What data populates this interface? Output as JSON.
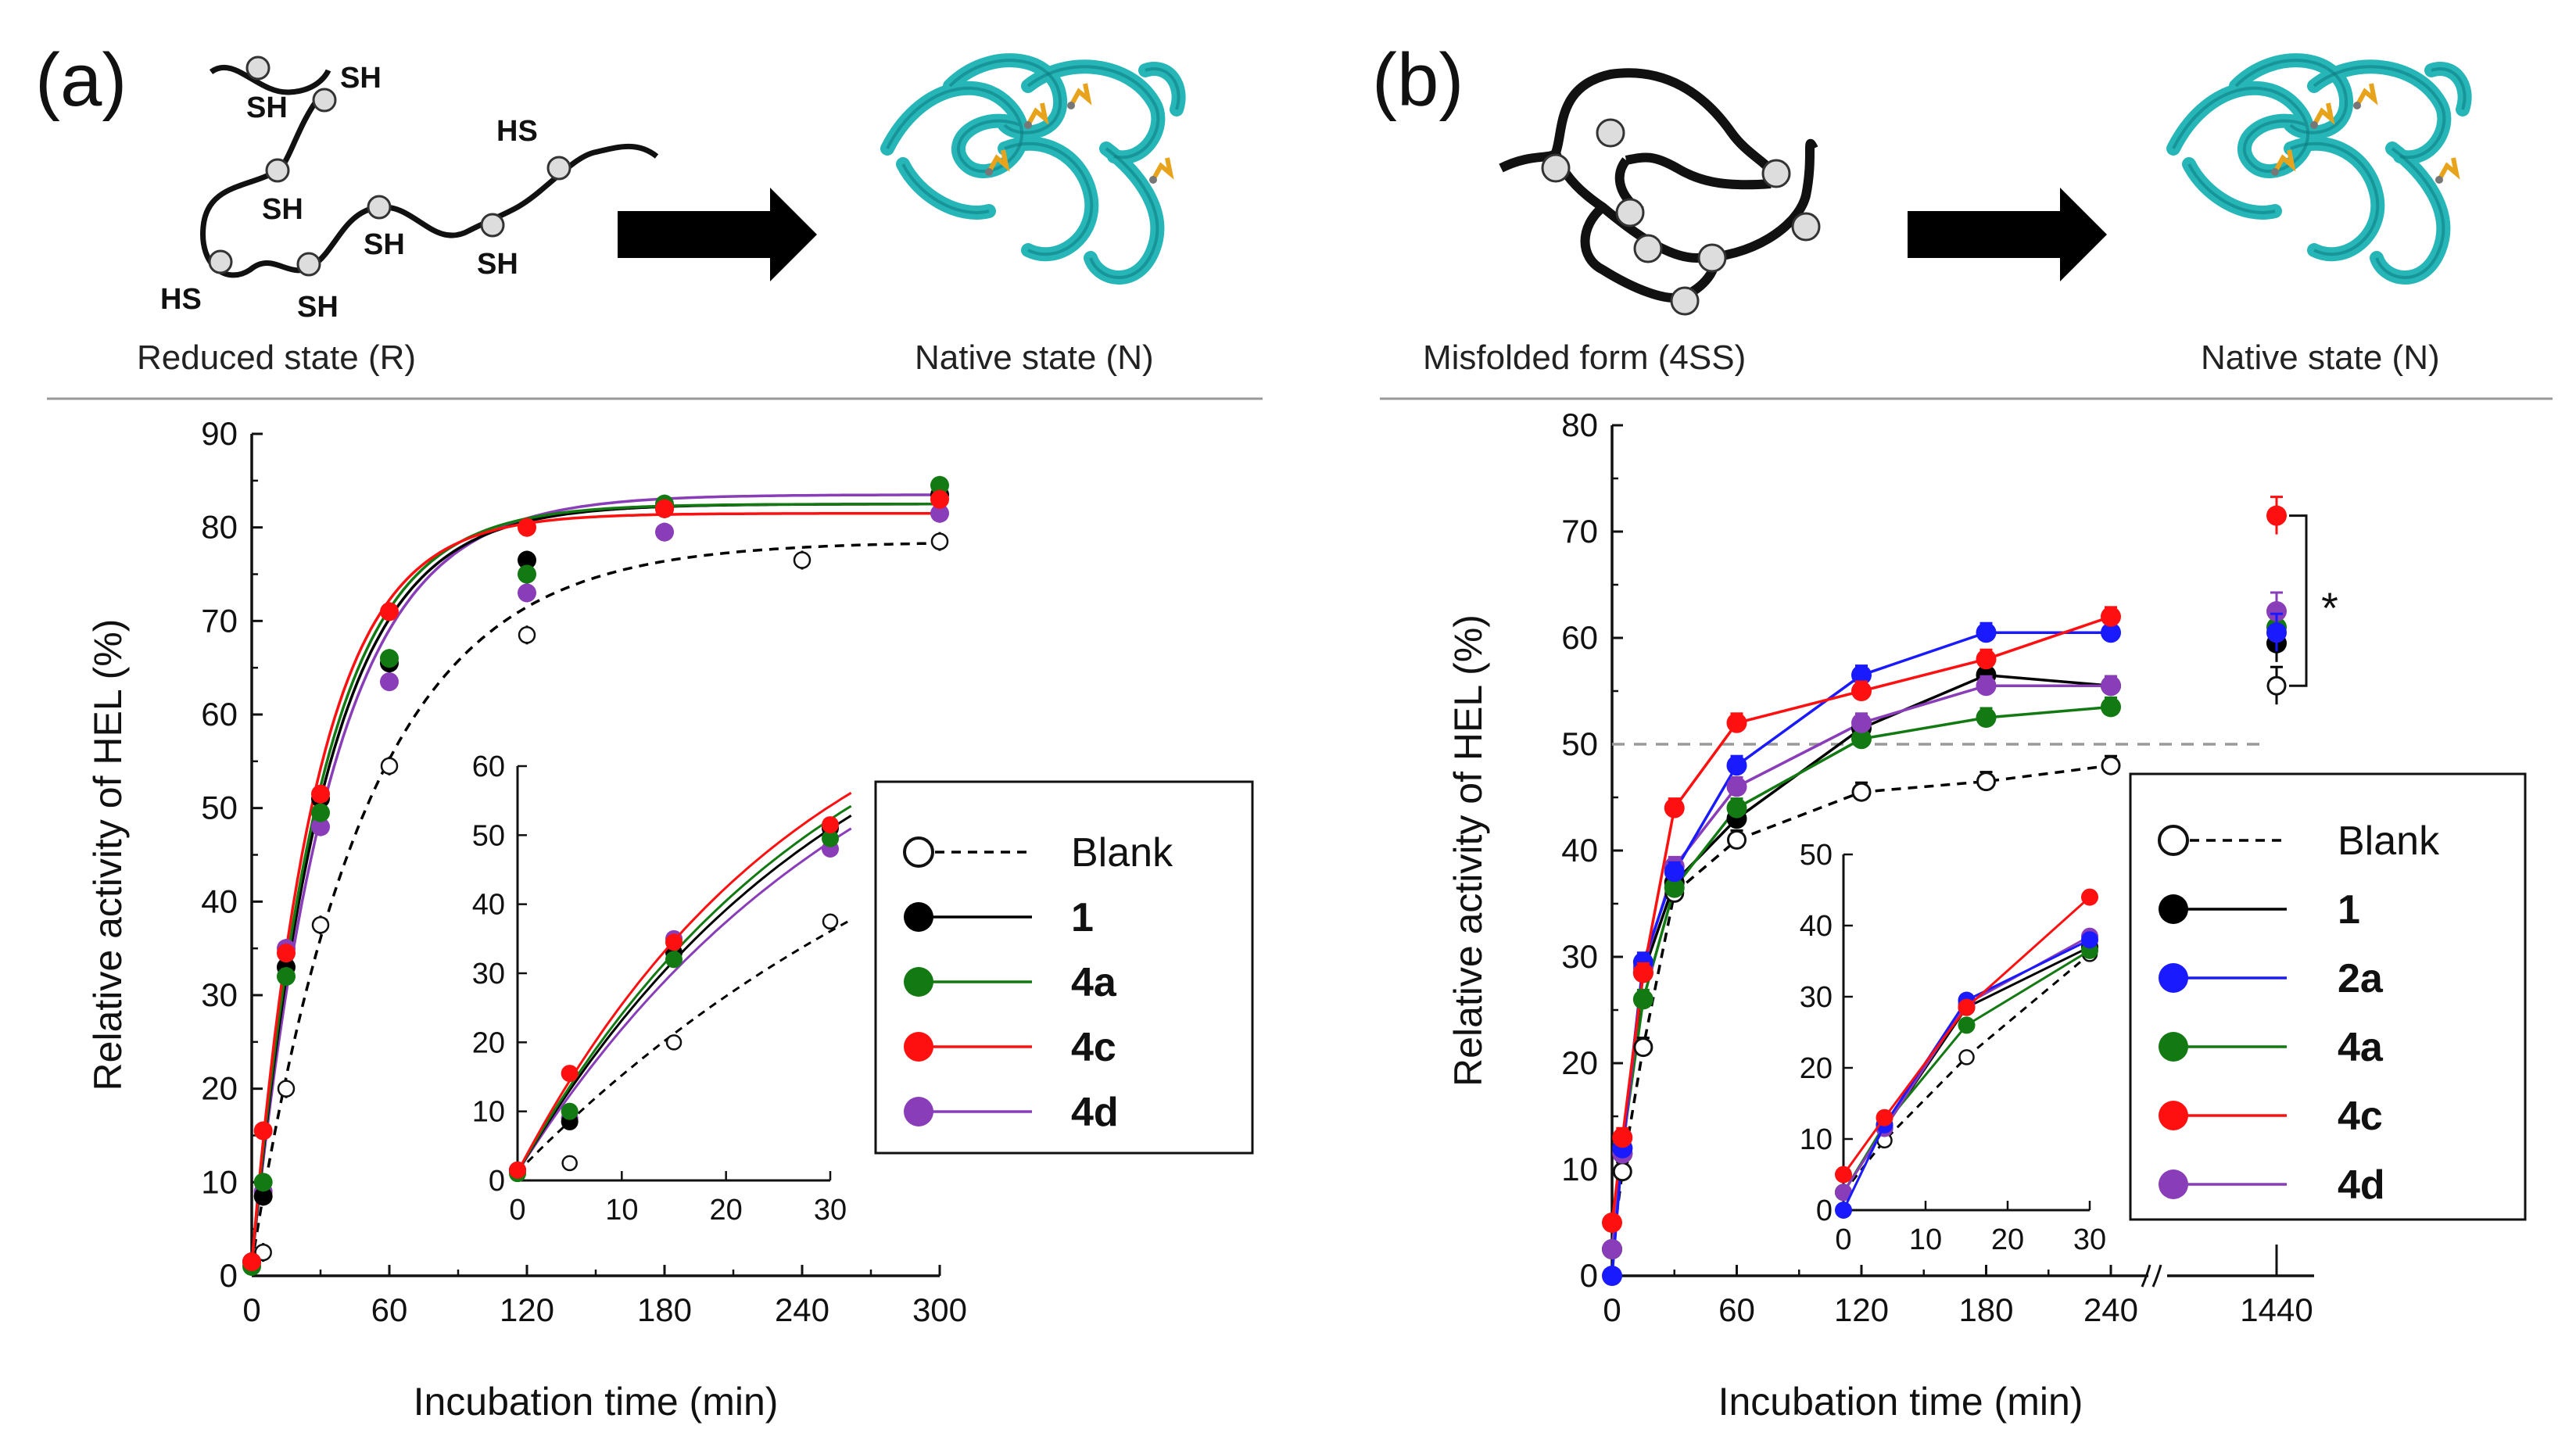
{
  "panels": [
    {
      "id": "a",
      "letter": "(a)",
      "left_caption": "Reduced state (R)",
      "right_caption": "Native state (N)",
      "thiol_labels": [
        "SH",
        "SH",
        "SH",
        "HS",
        "SH",
        "SH",
        "SH",
        "HS"
      ]
    },
    {
      "id": "b",
      "letter": "(b)",
      "left_caption": "Misfolded form (4SS)",
      "right_caption": "Native state (N)"
    }
  ],
  "colors": {
    "Blank": "#000000",
    "1": "#000000",
    "2a": "#1a1aff",
    "4a": "#137a13",
    "4c": "#ff1010",
    "4d": "#8a3db8",
    "protein": "#27b6b8",
    "disulfide": "#e8a31c"
  },
  "chart_data": [
    {
      "type": "line",
      "panel": "a",
      "xlabel": "Incubation time (min)",
      "ylabel": "Relative activity of HEL (%)",
      "xlim": [
        0,
        300
      ],
      "ylim": [
        0,
        90
      ],
      "xticks": [
        0,
        60,
        120,
        180,
        240,
        300
      ],
      "yticks": [
        0,
        10,
        20,
        30,
        40,
        50,
        60,
        70,
        80,
        90
      ],
      "legend": [
        "Blank",
        "1",
        "4a",
        "4c",
        "4d"
      ],
      "series": [
        {
          "name": "Blank",
          "style": "open-dashed",
          "x": [
            0,
            5,
            15,
            30,
            60,
            120,
            240,
            300
          ],
          "y": [
            1.5,
            2.5,
            20,
            37.5,
            54.5,
            68.5,
            76.5,
            78.5
          ],
          "fit_ymax": 78.5,
          "fit_k": 0.02
        },
        {
          "name": "1",
          "style": "filled",
          "x": [
            0,
            5,
            15,
            30,
            60,
            120,
            180,
            300
          ],
          "y": [
            1.5,
            8.5,
            33,
            51,
            65.5,
            76.5,
            82,
            83.5
          ],
          "fit_ymax": 82.5,
          "fit_k": 0.0315
        },
        {
          "name": "4a",
          "style": "filled",
          "x": [
            0,
            5,
            15,
            30,
            60,
            120,
            180,
            300
          ],
          "y": [
            1,
            10,
            32,
            49.5,
            66,
            75,
            82.5,
            84.5
          ],
          "fit_ymax": 82.5,
          "fit_k": 0.033
        },
        {
          "name": "4c",
          "style": "filled",
          "x": [
            0,
            5,
            15,
            30,
            60,
            120,
            180,
            300
          ],
          "y": [
            1.5,
            15.5,
            34.5,
            51.5,
            71,
            80,
            82,
            83
          ],
          "fit_ymax": 81.5,
          "fit_k": 0.036
        },
        {
          "name": "4d",
          "style": "filled",
          "x": [
            0,
            5,
            15,
            30,
            60,
            120,
            180,
            300
          ],
          "y": [
            1.5,
            9,
            35,
            48,
            63.5,
            73,
            79.5,
            81.5
          ],
          "fit_ymax": 83.5,
          "fit_k": 0.029
        }
      ],
      "inset": {
        "xlim": [
          0,
          30
        ],
        "ylim": [
          0,
          60
        ],
        "xticks": [
          0,
          10,
          20,
          30
        ],
        "yticks": [
          0,
          10,
          20,
          30,
          40,
          50,
          60
        ]
      }
    },
    {
      "type": "line",
      "panel": "b",
      "xlabel": "Incubation time (min)",
      "ylabel": "Relative activity of HEL (%)",
      "xlim": [
        0,
        1440
      ],
      "ylim": [
        0,
        80
      ],
      "xticks": [
        0,
        60,
        120,
        180,
        240,
        1440
      ],
      "yticks": [
        0,
        10,
        20,
        30,
        40,
        50,
        60,
        70,
        80
      ],
      "axis_break": "240–1440",
      "reference_line_y": 50,
      "significance_mark": "*",
      "legend": [
        "Blank",
        "1",
        "2a",
        "4a",
        "4c",
        "4d"
      ],
      "series": [
        {
          "name": "Blank",
          "style": "open-dashed",
          "x": [
            0,
            5,
            15,
            30,
            60,
            120,
            180,
            240,
            1440
          ],
          "y": [
            2.5,
            9.8,
            21.5,
            36,
            41,
            45.5,
            46.5,
            48,
            55.5
          ]
        },
        {
          "name": "1",
          "style": "filled",
          "x": [
            0,
            5,
            15,
            30,
            60,
            120,
            180,
            240,
            1440
          ],
          "y": [
            2.5,
            11.5,
            28.5,
            37,
            43,
            51.5,
            56.5,
            55.5,
            59.5
          ]
        },
        {
          "name": "2a",
          "style": "filled",
          "x": [
            0,
            5,
            15,
            30,
            60,
            120,
            180,
            240,
            1440
          ],
          "y": [
            0,
            12,
            29.5,
            38,
            48,
            56.5,
            60.5,
            60.5,
            60.5
          ]
        },
        {
          "name": "4a",
          "style": "filled",
          "x": [
            0,
            5,
            15,
            30,
            60,
            120,
            180,
            240,
            1440
          ],
          "y": [
            2.5,
            12,
            26,
            36.5,
            44,
            50.5,
            52.5,
            53.5,
            61
          ]
        },
        {
          "name": "4c",
          "style": "filled",
          "x": [
            0,
            5,
            15,
            30,
            60,
            120,
            180,
            240,
            1440
          ],
          "y": [
            5,
            13,
            28.5,
            44,
            52,
            55,
            58,
            62,
            71.5
          ]
        },
        {
          "name": "4d",
          "style": "filled",
          "x": [
            0,
            5,
            15,
            30,
            60,
            120,
            180,
            240,
            1440
          ],
          "y": [
            2.5,
            11.5,
            29,
            38.5,
            46,
            52,
            55.5,
            55.5,
            62.5
          ]
        }
      ],
      "inset": {
        "xlim": [
          0,
          30
        ],
        "ylim": [
          0,
          50
        ],
        "xticks": [
          0,
          10,
          20,
          30
        ],
        "yticks": [
          0,
          10,
          20,
          30,
          40,
          50
        ]
      }
    }
  ]
}
